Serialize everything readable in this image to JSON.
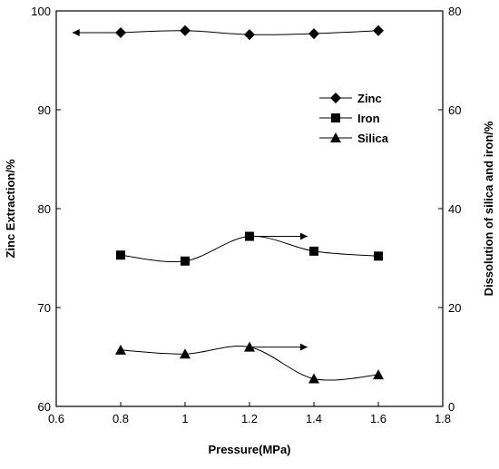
{
  "chart_data": {
    "type": "line",
    "x_label": "Pressure(MPa)",
    "y_label_left": "Zinc Extraction/%",
    "y_label_right": "Dissolution of silica and iron/%",
    "x_range": [
      0.6,
      1.8
    ],
    "x_ticks": [
      0.6,
      0.8,
      1.0,
      1.2,
      1.4,
      1.6,
      1.8
    ],
    "x_tick_labels": [
      "0.6",
      "0.8",
      "1",
      "1.2",
      "1.4",
      "1.6",
      "1.8"
    ],
    "y_left_range": [
      60,
      100
    ],
    "y_left_ticks": [
      60,
      70,
      80,
      90,
      100
    ],
    "y_left_tick_labels": [
      "60",
      "70",
      "80",
      "90",
      "100"
    ],
    "y_right_range": [
      0,
      80
    ],
    "y_right_ticks": [
      0,
      20,
      40,
      60,
      80
    ],
    "y_right_tick_labels": [
      "0",
      "20",
      "40",
      "60",
      "80"
    ],
    "grid": false,
    "legend_position": "upper-right",
    "series": [
      {
        "name": "Zinc",
        "axis": "left",
        "marker": "diamond",
        "x": [
          0.8,
          1.0,
          1.2,
          1.4,
          1.6
        ],
        "y": [
          97.8,
          98.0,
          97.6,
          97.7,
          98.0
        ],
        "arrow": {
          "direction": "left",
          "from_x": 0.8,
          "to_x": 0.65,
          "y": 97.8
        }
      },
      {
        "name": "Iron",
        "axis": "right",
        "marker": "square",
        "x": [
          0.8,
          1.0,
          1.2,
          1.4,
          1.6
        ],
        "y": [
          30.6,
          29.4,
          34.4,
          31.4,
          30.4
        ],
        "arrow": {
          "direction": "right",
          "from_x": 1.2,
          "to_x": 1.38,
          "y": 34.4
        }
      },
      {
        "name": "Silica",
        "axis": "right",
        "marker": "triangle",
        "x": [
          0.8,
          1.0,
          1.2,
          1.4,
          1.6
        ],
        "y": [
          11.4,
          10.6,
          12.0,
          5.6,
          6.4
        ],
        "arrow": {
          "direction": "right",
          "from_x": 1.2,
          "to_x": 1.38,
          "y": 12.0
        }
      }
    ]
  }
}
